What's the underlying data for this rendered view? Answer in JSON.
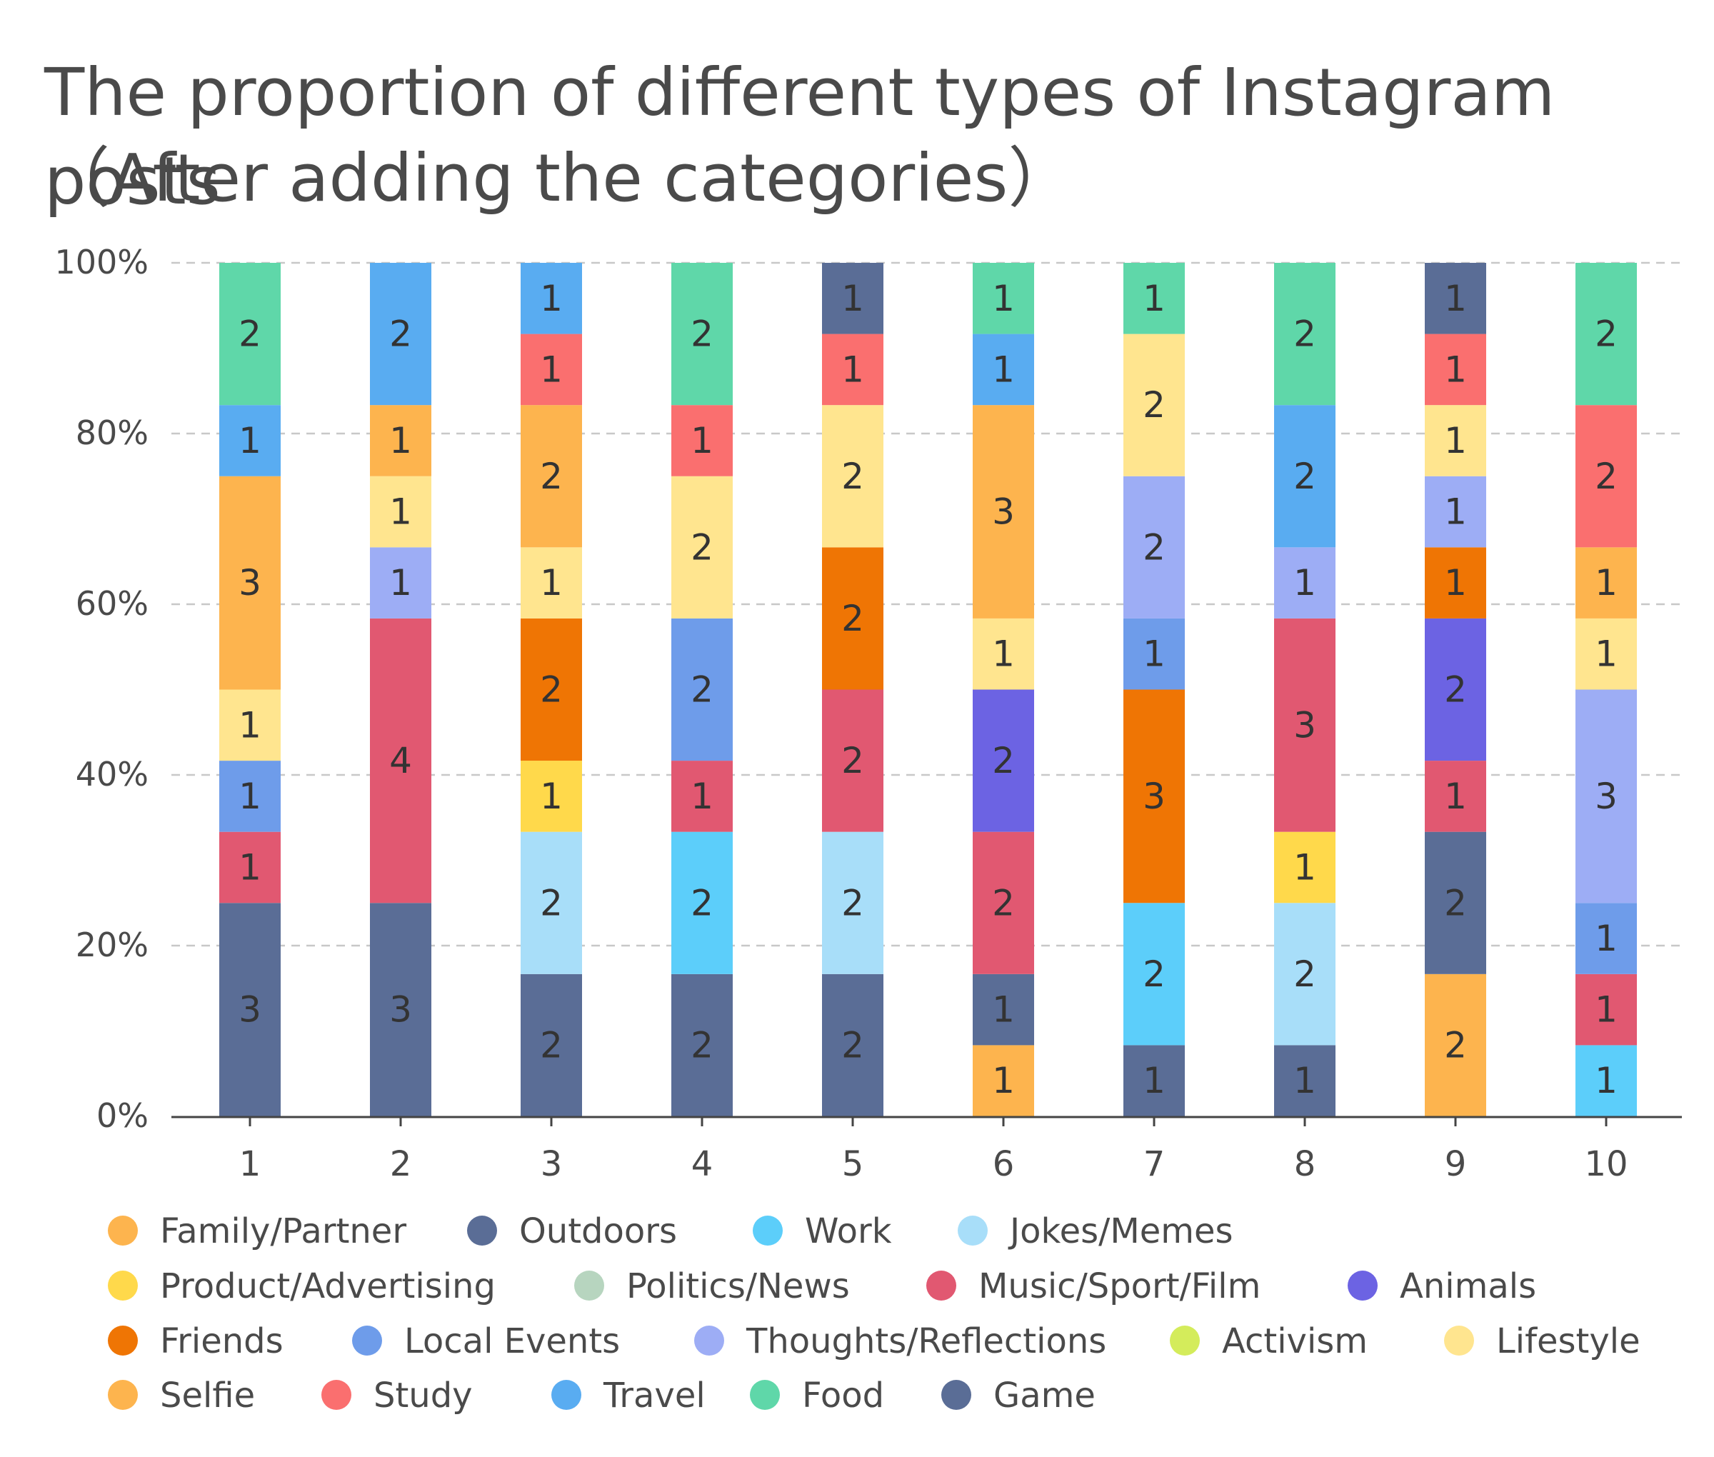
{
  "chart_data": {
    "type": "bar",
    "stacked": true,
    "normalized": true,
    "title": "The proportion of different types of Instagram posts",
    "subtitle": "（After adding the categories）",
    "categories": [
      "1",
      "2",
      "3",
      "4",
      "5",
      "6",
      "7",
      "8",
      "9",
      "10"
    ],
    "yticks": [
      "0%",
      "20%",
      "40%",
      "60%",
      "80%",
      "100%"
    ],
    "ylim": [
      0,
      100
    ],
    "legend_position": "bottom",
    "legend": [
      {
        "name": "Family/Partner",
        "color": "#FDB44E"
      },
      {
        "name": "Outdoors",
        "color": "#5A6D96"
      },
      {
        "name": "Work",
        "color": "#5CCEFA"
      },
      {
        "name": "Jokes/Memes",
        "color": "#A8DEF9"
      },
      {
        "name": "Product/Advertising",
        "color": "#FFD94B"
      },
      {
        "name": "Politics/News",
        "color": "#B7D5BF"
      },
      {
        "name": "Music/Sport/Film",
        "color": "#E15871"
      },
      {
        "name": "Animals",
        "color": "#6C63E3"
      },
      {
        "name": "Friends",
        "color": "#EF7504"
      },
      {
        "name": "Local Events",
        "color": "#6E9CEA"
      },
      {
        "name": "Thoughts/Reflections",
        "color": "#9DADF5"
      },
      {
        "name": "Activism",
        "color": "#D4EC5B"
      },
      {
        "name": "Lifestyle",
        "color": "#FFE58F"
      },
      {
        "name": "Selfie",
        "color": "#FDB44E"
      },
      {
        "name": "Study",
        "color": "#FA6F6F"
      },
      {
        "name": "Travel",
        "color": "#59ACF1"
      },
      {
        "name": "Food",
        "color": "#5FD7A9"
      },
      {
        "name": "Game",
        "color": "#5A6D96"
      }
    ],
    "stacks": [
      [
        {
          "series": "Game",
          "value": 3
        },
        {
          "series": "Music/Sport/Film",
          "value": 1
        },
        {
          "series": "Local Events",
          "value": 1
        },
        {
          "series": "Lifestyle",
          "value": 1
        },
        {
          "series": "Selfie",
          "value": 3
        },
        {
          "series": "Travel",
          "value": 1
        },
        {
          "series": "Food",
          "value": 2
        }
      ],
      [
        {
          "series": "Game",
          "value": 3
        },
        {
          "series": "Music/Sport/Film",
          "value": 4
        },
        {
          "series": "Thoughts/Reflections",
          "value": 1
        },
        {
          "series": "Lifestyle",
          "value": 1
        },
        {
          "series": "Selfie",
          "value": 1
        },
        {
          "series": "Travel",
          "value": 2
        }
      ],
      [
        {
          "series": "Game",
          "value": 2
        },
        {
          "series": "Jokes/Memes",
          "value": 2
        },
        {
          "series": "Product/Advertising",
          "value": 1
        },
        {
          "series": "Friends",
          "value": 2
        },
        {
          "series": "Lifestyle",
          "value": 1
        },
        {
          "series": "Selfie",
          "value": 2
        },
        {
          "series": "Study",
          "value": 1
        },
        {
          "series": "Travel",
          "value": 1
        }
      ],
      [
        {
          "series": "Game",
          "value": 2
        },
        {
          "series": "Work",
          "value": 2
        },
        {
          "series": "Music/Sport/Film",
          "value": 1
        },
        {
          "series": "Local Events",
          "value": 2
        },
        {
          "series": "Lifestyle",
          "value": 2
        },
        {
          "series": "Study",
          "value": 1
        },
        {
          "series": "Food",
          "value": 2
        }
      ],
      [
        {
          "series": "Game",
          "value": 2
        },
        {
          "series": "Jokes/Memes",
          "value": 2
        },
        {
          "series": "Music/Sport/Film",
          "value": 2
        },
        {
          "series": "Friends",
          "value": 2
        },
        {
          "series": "Lifestyle",
          "value": 2
        },
        {
          "series": "Study",
          "value": 1
        },
        {
          "series": "Game",
          "value": 1
        }
      ],
      [
        {
          "series": "Selfie",
          "value": 1
        },
        {
          "series": "Game",
          "value": 1
        },
        {
          "series": "Music/Sport/Film",
          "value": 2
        },
        {
          "series": "Animals",
          "value": 2
        },
        {
          "series": "Lifestyle",
          "value": 1
        },
        {
          "series": "Selfie",
          "value": 3
        },
        {
          "series": "Travel",
          "value": 1
        },
        {
          "series": "Food",
          "value": 1
        }
      ],
      [
        {
          "series": "Game",
          "value": 1
        },
        {
          "series": "Work",
          "value": 2
        },
        {
          "series": "Friends",
          "value": 3
        },
        {
          "series": "Local Events",
          "value": 1
        },
        {
          "series": "Thoughts/Reflections",
          "value": 2
        },
        {
          "series": "Lifestyle",
          "value": 2
        },
        {
          "series": "Food",
          "value": 1
        }
      ],
      [
        {
          "series": "Game",
          "value": 1
        },
        {
          "series": "Jokes/Memes",
          "value": 2
        },
        {
          "series": "Product/Advertising",
          "value": 1
        },
        {
          "series": "Music/Sport/Film",
          "value": 3
        },
        {
          "series": "Thoughts/Reflections",
          "value": 1
        },
        {
          "series": "Travel",
          "value": 2
        },
        {
          "series": "Food",
          "value": 2
        }
      ],
      [
        {
          "series": "Selfie",
          "value": 2
        },
        {
          "series": "Game",
          "value": 2
        },
        {
          "series": "Music/Sport/Film",
          "value": 1
        },
        {
          "series": "Animals",
          "value": 2
        },
        {
          "series": "Friends",
          "value": 1
        },
        {
          "series": "Thoughts/Reflections",
          "value": 1
        },
        {
          "series": "Lifestyle",
          "value": 1
        },
        {
          "series": "Study",
          "value": 1
        },
        {
          "series": "Game",
          "value": 1
        }
      ],
      [
        {
          "series": "Work",
          "value": 1
        },
        {
          "series": "Music/Sport/Film",
          "value": 1
        },
        {
          "series": "Local Events",
          "value": 1
        },
        {
          "series": "Thoughts/Reflections",
          "value": 3
        },
        {
          "series": "Lifestyle",
          "value": 1
        },
        {
          "series": "Selfie",
          "value": 1
        },
        {
          "series": "Study",
          "value": 2
        },
        {
          "series": "Food",
          "value": 2
        }
      ]
    ]
  }
}
